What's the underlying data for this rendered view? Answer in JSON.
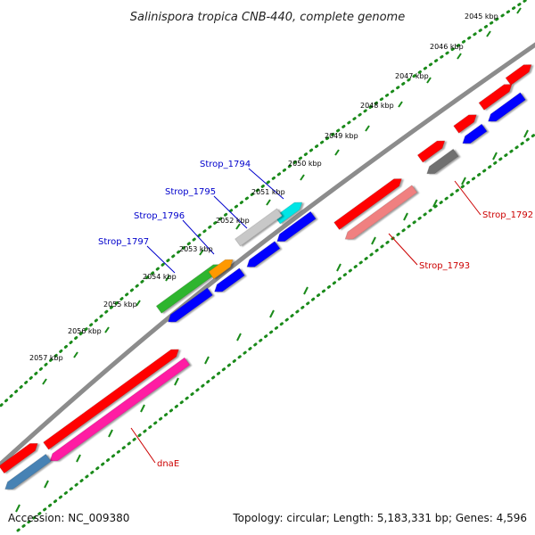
{
  "title": "Salinispora tropica CNB-440, complete genome",
  "footer": {
    "accession": "Accession: NC_009380",
    "stats": "Topology: circular; Length: 5,183,331 bp; Genes: 4,596"
  },
  "scale_ticks": [
    "2045 kbp",
    "2046 kbp",
    "2047 kbp",
    "2048 kbp",
    "2049 kbp",
    "2050 kbp",
    "2051 kbp",
    "2052 kbp",
    "2053 kbp",
    "2054 kbp",
    "2055 kbp",
    "2056 kbp",
    "2057 kbp"
  ],
  "gene_labels": [
    "Strop_1794",
    "Strop_1795",
    "Strop_1796",
    "Strop_1797",
    "Strop_1793",
    "Strop_1792",
    "dnaE"
  ],
  "colors": {
    "forward_cds": "#ff0000",
    "reverse_cds": "#0000ff",
    "backbone": "#888888",
    "tick_dots": "#1a8a1a",
    "label_blue": "#0000cc",
    "label_red": "#cc0000",
    "pink": "#ff1aa3",
    "salmon": "#f08080",
    "steel_blue": "#4682b4",
    "green": "#2db52d",
    "orange": "#ff9900",
    "cyan": "#00e5e5",
    "silver": "#c8c8c8",
    "dark_gray": "#666666"
  }
}
